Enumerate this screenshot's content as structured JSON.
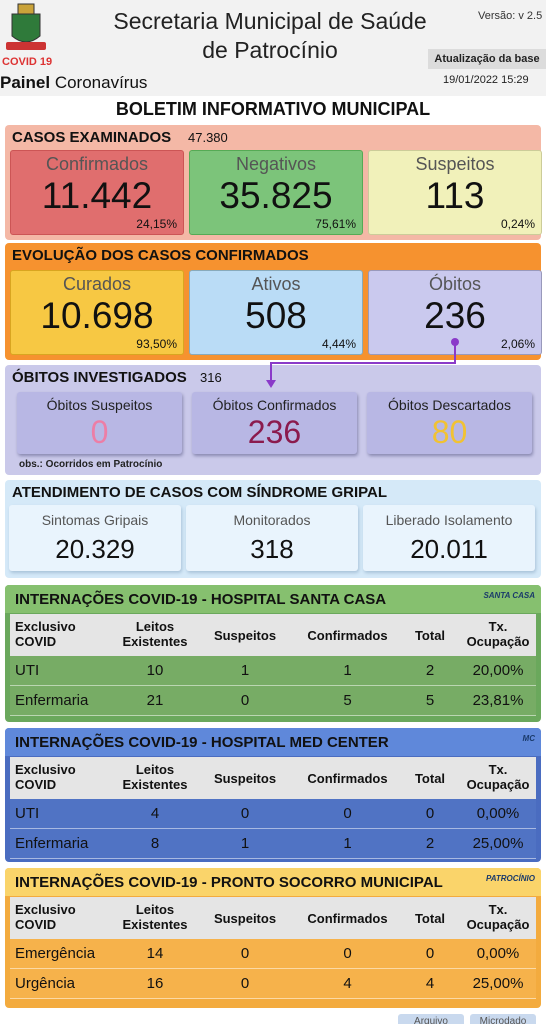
{
  "header": {
    "logo_label": "COVID 19",
    "app_name_bold": "Painel",
    "app_name": "Coronavírus",
    "title_line1": "Secretaria Municipal de Saúde",
    "title_line2": "de Patrocínio",
    "version": "Versão: v 2.5",
    "update_label": "Atualização da base",
    "update_date": "19/01/2022 15:29"
  },
  "bulletin_title": "BOLETIM INFORMATIVO MUNICIPAL",
  "casos_examinados": {
    "title": "CASOS EXAMINADOS",
    "total": "47.380",
    "cards": [
      {
        "label": "Confirmados",
        "value": "11.442",
        "percent": "24,15%"
      },
      {
        "label": "Negativos",
        "value": "35.825",
        "percent": "75,61%"
      },
      {
        "label": "Suspeitos",
        "value": "113",
        "percent": "0,24%"
      }
    ]
  },
  "evolucao": {
    "title": "EVOLUÇÃO DOS CASOS CONFIRMADOS",
    "cards": [
      {
        "label": "Curados",
        "value": "10.698",
        "percent": "93,50%"
      },
      {
        "label": "Ativos",
        "value": "508",
        "percent": "4,44%"
      },
      {
        "label": "Óbitos",
        "value": "236",
        "percent": "2,06%"
      }
    ]
  },
  "obitos": {
    "title": "ÓBITOS INVESTIGADOS",
    "total": "316",
    "cards": [
      {
        "label": "Óbitos Suspeitos",
        "value": "0"
      },
      {
        "label": "Óbitos Confirmados",
        "value": "236"
      },
      {
        "label": "Óbitos Descartados",
        "value": "80"
      }
    ],
    "note": "obs.: Ocorridos em Patrocínio"
  },
  "sindrome": {
    "title": "ATENDIMENTO DE CASOS COM SÍNDROME GRIPAL",
    "cards": [
      {
        "label": "Sintomas Gripais",
        "value": "20.329"
      },
      {
        "label": "Monitorados",
        "value": "318"
      },
      {
        "label": "Liberado Isolamento",
        "value": "20.011"
      }
    ]
  },
  "hospitals": [
    {
      "title": "INTERNAÇÕES COVID-19 - HOSPITAL SANTA CASA",
      "logo_text": "SANTA CASA",
      "columns": [
        [
          "Exclusivo",
          "COVID"
        ],
        [
          "Leitos",
          "Existentes"
        ],
        [
          "Suspeitos"
        ],
        [
          "Confirmados"
        ],
        [
          "Total"
        ],
        [
          "Tx.",
          "Ocupação"
        ]
      ],
      "rows": [
        [
          "UTI",
          "10",
          "1",
          "1",
          "2",
          "20,00%"
        ],
        [
          "Enfermaria",
          "21",
          "0",
          "5",
          "5",
          "23,81%"
        ]
      ]
    },
    {
      "title": "INTERNAÇÕES COVID-19 - HOSPITAL MED CENTER",
      "logo_text": "MC",
      "columns": [
        [
          "Exclusivo",
          "COVID"
        ],
        [
          "Leitos",
          "Existentes"
        ],
        [
          "Suspeitos"
        ],
        [
          "Confirmados"
        ],
        [
          "Total"
        ],
        [
          "Tx.",
          "Ocupação"
        ]
      ],
      "rows": [
        [
          "UTI",
          "4",
          "0",
          "0",
          "0",
          "0,00%"
        ],
        [
          "Enfermaria",
          "8",
          "1",
          "1",
          "2",
          "25,00%"
        ]
      ]
    },
    {
      "title": "INTERNAÇÕES COVID-19 - PRONTO SOCORRO MUNICIPAL",
      "logo_text": "PATROCÍNIO",
      "columns": [
        [
          "Exclusivo",
          "COVID"
        ],
        [
          "Leitos",
          "Existentes"
        ],
        [
          "Suspeitos"
        ],
        [
          "Confirmados"
        ],
        [
          "Total"
        ],
        [
          "Tx.",
          "Ocupação"
        ]
      ],
      "rows": [
        [
          "Emergência",
          "14",
          "0",
          "0",
          "0",
          "0,00%"
        ],
        [
          "Urgência",
          "16",
          "0",
          "4",
          "4",
          "25,00%"
        ]
      ]
    }
  ],
  "footer": {
    "buttons": [
      "Arquivo",
      "Microdado"
    ]
  }
}
